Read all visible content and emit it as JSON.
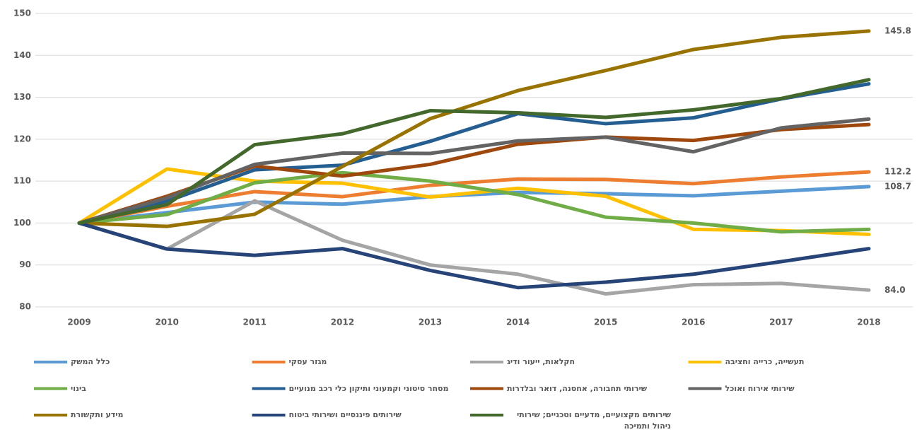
{
  "chart_data": {
    "type": "line",
    "categories": [
      "2009",
      "2010",
      "2011",
      "2012",
      "2013",
      "2014",
      "2015",
      "2016",
      "2017",
      "2018"
    ],
    "ylim": [
      80,
      150
    ],
    "yticks": [
      80,
      90,
      100,
      110,
      120,
      130,
      140,
      150
    ],
    "grid": true,
    "legend": "bottom",
    "series": [
      {
        "name": "כלל המשק",
        "color": "#5b9bd5",
        "values": [
          100,
          102.5,
          105,
          104.5,
          106.3,
          107.3,
          107,
          106.5,
          107.6,
          108.7
        ],
        "value_labels": [
          null,
          null,
          null,
          null,
          null,
          null,
          null,
          null,
          null,
          "108.7"
        ]
      },
      {
        "name": "מגזר עסקי",
        "color": "#ed7d31",
        "values": [
          100,
          104,
          107.5,
          106.3,
          109,
          110.5,
          110.4,
          109.4,
          111,
          112.2
        ],
        "value_labels": [
          null,
          null,
          null,
          null,
          null,
          null,
          null,
          null,
          null,
          "112.2"
        ]
      },
      {
        "name": "חקלאות, ייעור ודיג",
        "color": "#a5a5a5",
        "values": [
          100,
          93.8,
          105.3,
          95.9,
          90,
          87.8,
          83.1,
          85.3,
          85.6,
          84
        ],
        "value_labels": [
          null,
          null,
          null,
          null,
          null,
          null,
          null,
          null,
          null,
          "84.0"
        ]
      },
      {
        "name": "תעשייה, כרייה וחציבה",
        "color": "#ffc000",
        "values": [
          100,
          112.9,
          110,
          109.5,
          106.2,
          108.3,
          106.4,
          98.5,
          98.2,
          97.3
        ]
      },
      {
        "name": "בינוי",
        "color": "#70ad47",
        "values": [
          100,
          102,
          109.6,
          112,
          110,
          106.8,
          101.4,
          100,
          97.9,
          98.5
        ]
      },
      {
        "name": "מסחר סיטוני וקמעוני ותיקון כלי רכב מנועיים",
        "color": "#255e91",
        "values": [
          100,
          105.2,
          112.7,
          113.8,
          119.5,
          126.1,
          123.7,
          125.1,
          129.6,
          133.2
        ]
      },
      {
        "name": "שירותי תחבורה, אחסנה, דואר ובלדרות",
        "color": "#9e480e",
        "values": [
          100,
          106.4,
          113.6,
          111.2,
          114,
          118.8,
          120.5,
          119.7,
          122.3,
          123.5
        ]
      },
      {
        "name": "שירותי אירוח ואוכל",
        "color": "#636363",
        "values": [
          100,
          106,
          114,
          116.7,
          116.6,
          119.6,
          120.5,
          117,
          122.7,
          124.8
        ]
      },
      {
        "name": "מידע ותקשורת",
        "color": "#997300",
        "values": [
          100,
          99.2,
          102.1,
          113.5,
          124.9,
          131.6,
          136.4,
          141.4,
          144.3,
          145.8
        ],
        "value_labels": [
          null,
          null,
          null,
          null,
          null,
          null,
          null,
          null,
          null,
          "145.8"
        ]
      },
      {
        "name": "שירותים פיננסיים ושירותי ביטוח",
        "color": "#264478",
        "values": [
          100,
          93.8,
          92.3,
          93.9,
          88.7,
          84.6,
          85.9,
          87.8,
          90.8,
          93.9
        ]
      },
      {
        "name": "שירותים מקצועיים, מדעיים וטכניים; שירותי ניהול ותמיכה",
        "color": "#43682b",
        "values": [
          100,
          104.4,
          118.7,
          121.3,
          126.8,
          126.3,
          125.2,
          127,
          129.7,
          134.2
        ]
      }
    ]
  }
}
